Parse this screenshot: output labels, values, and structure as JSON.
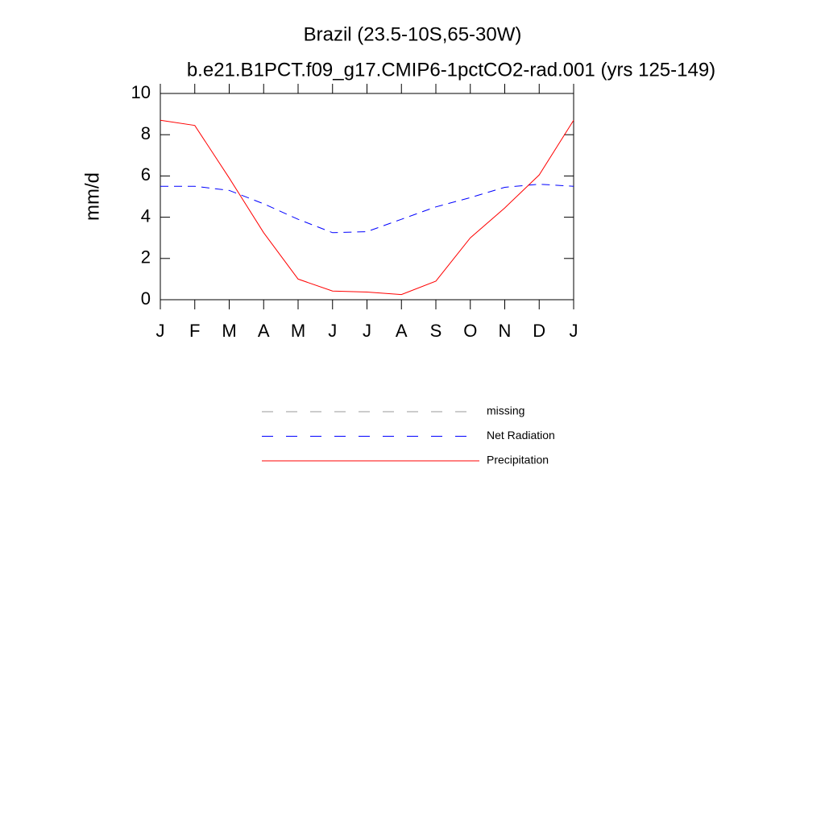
{
  "chart_data": {
    "type": "line",
    "title": "Brazil (23.5-10S,65-30W)",
    "subtitle": "b.e21.B1PCT.f09_g17.CMIP6-1pctCO2-rad.001 (yrs 125-149)",
    "y_label": "mm/d",
    "categories": [
      "J",
      "F",
      "M",
      "A",
      "M",
      "J",
      "J",
      "A",
      "S",
      "O",
      "N",
      "D",
      "J"
    ],
    "ylim": [
      0,
      10
    ],
    "yticks": [
      0,
      2,
      4,
      6,
      8,
      10
    ],
    "series": [
      {
        "name": "missing",
        "color": "#999999",
        "dashed": true,
        "values": [
          null,
          null,
          null,
          null,
          null,
          null,
          null,
          null,
          null,
          null,
          null,
          null,
          null
        ]
      },
      {
        "name": "Net Radiation",
        "color": "#0000ff",
        "dashed": true,
        "values": [
          5.5,
          5.5,
          5.3,
          4.65,
          3.9,
          3.25,
          3.3,
          3.9,
          4.5,
          4.95,
          5.45,
          5.6,
          5.5
        ]
      },
      {
        "name": "Precipitation",
        "color": "#ff0000",
        "dashed": false,
        "values": [
          8.7,
          8.45,
          5.9,
          3.25,
          1.0,
          0.42,
          0.37,
          0.25,
          0.9,
          3.0,
          4.45,
          6.05,
          8.7
        ]
      }
    ]
  }
}
